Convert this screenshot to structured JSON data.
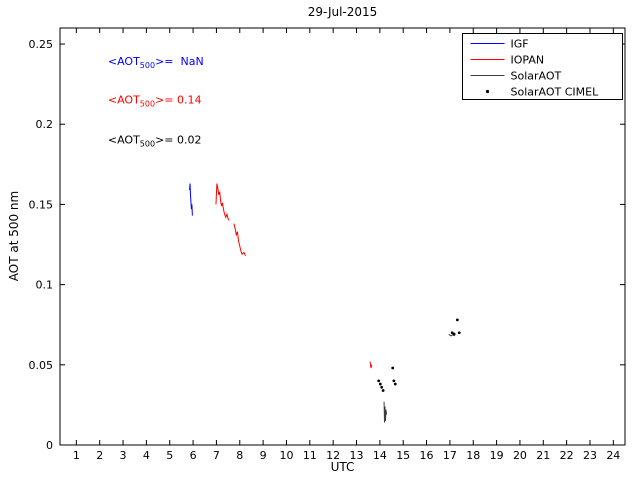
{
  "chart_data": {
    "type": "line",
    "title": "29-Jul-2015",
    "xlabel": "UTC",
    "ylabel": "AOT at 500 nm",
    "xlim": [
      0.3,
      24.5
    ],
    "ylim": [
      0,
      0.26
    ],
    "xticks": [
      1,
      2,
      3,
      4,
      5,
      6,
      7,
      8,
      9,
      10,
      11,
      12,
      13,
      14,
      15,
      16,
      17,
      18,
      19,
      20,
      21,
      22,
      23,
      24
    ],
    "yticks": [
      0,
      0.05,
      0.1,
      0.15,
      0.2,
      0.25
    ],
    "ytick_labels": [
      "0",
      "0.05",
      "0.1",
      "0.15",
      "0.2",
      "0.25"
    ],
    "grid": false,
    "legend": {
      "position": "top-right",
      "entries": [
        {
          "label": "IGF",
          "color": "#0000ff",
          "style": "line"
        },
        {
          "label": "IOPAN",
          "color": "#ff0000",
          "style": "line"
        },
        {
          "label": "SolarAOT",
          "color": "#3c3c3c",
          "style": "line"
        },
        {
          "label": "SolarAOT CIMEL",
          "color": "#000000",
          "style": "dot"
        }
      ]
    },
    "series": [
      {
        "name": "IGF",
        "color": "#0000ff",
        "type": "line",
        "segments": [
          [
            [
              5.85,
              0.159
            ],
            [
              5.87,
              0.163
            ],
            [
              5.89,
              0.156
            ],
            [
              5.91,
              0.151
            ],
            [
              5.93,
              0.147
            ],
            [
              5.95,
              0.15
            ],
            [
              5.97,
              0.143
            ]
          ]
        ]
      },
      {
        "name": "IOPAN",
        "color": "#ff0000",
        "type": "line",
        "segments": [
          [
            [
              6.98,
              0.15
            ],
            [
              7.02,
              0.163
            ],
            [
              7.06,
              0.16
            ],
            [
              7.1,
              0.156
            ],
            [
              7.14,
              0.158
            ],
            [
              7.18,
              0.152
            ],
            [
              7.22,
              0.149
            ],
            [
              7.26,
              0.151
            ],
            [
              7.3,
              0.147
            ],
            [
              7.35,
              0.144
            ],
            [
              7.4,
              0.142
            ],
            [
              7.45,
              0.144
            ],
            [
              7.5,
              0.141
            ],
            [
              7.55,
              0.14
            ]
          ],
          [
            [
              7.75,
              0.138
            ],
            [
              7.8,
              0.135
            ],
            [
              7.85,
              0.131
            ],
            [
              7.9,
              0.133
            ],
            [
              7.95,
              0.127
            ],
            [
              8.0,
              0.124
            ],
            [
              8.05,
              0.121
            ],
            [
              8.1,
              0.119
            ],
            [
              8.18,
              0.12
            ],
            [
              8.25,
              0.118
            ]
          ],
          [
            [
              13.58,
              0.052
            ],
            [
              13.62,
              0.048
            ],
            [
              13.66,
              0.05
            ]
          ]
        ]
      },
      {
        "name": "SolarAOT",
        "color": "#3c3c3c",
        "type": "line",
        "segments": [
          [
            [
              14.18,
              0.027
            ],
            [
              14.2,
              0.014
            ],
            [
              14.22,
              0.024
            ],
            [
              14.24,
              0.015
            ],
            [
              14.26,
              0.022
            ],
            [
              14.29,
              0.019
            ]
          ],
          [
            [
              16.95,
              0.069
            ],
            [
              17.05,
              0.068
            ],
            [
              17.15,
              0.069
            ],
            [
              17.22,
              0.07
            ]
          ]
        ]
      },
      {
        "name": "SolarAOT CIMEL",
        "color": "#000000",
        "type": "scatter",
        "points": [
          [
            13.95,
            0.04
          ],
          [
            14.02,
            0.038
          ],
          [
            14.08,
            0.036
          ],
          [
            14.14,
            0.034
          ],
          [
            14.55,
            0.048
          ],
          [
            14.6,
            0.04
          ],
          [
            14.66,
            0.038
          ],
          [
            17.1,
            0.07
          ],
          [
            17.18,
            0.069
          ],
          [
            17.32,
            0.078
          ],
          [
            17.4,
            0.07
          ]
        ]
      }
    ],
    "annotations": [
      {
        "pre": "<AOT",
        "sub": "500",
        "post": ">=  NaN",
        "color": "#0000ff",
        "x": 2.35,
        "y": 0.237
      },
      {
        "pre": "<AOT",
        "sub": "500",
        "post": ">= 0.14",
        "color": "#ff0000",
        "x": 2.35,
        "y": 0.213
      },
      {
        "pre": "<AOT",
        "sub": "500",
        "post": ">= 0.02",
        "color": "#000000",
        "x": 2.35,
        "y": 0.188
      }
    ]
  }
}
